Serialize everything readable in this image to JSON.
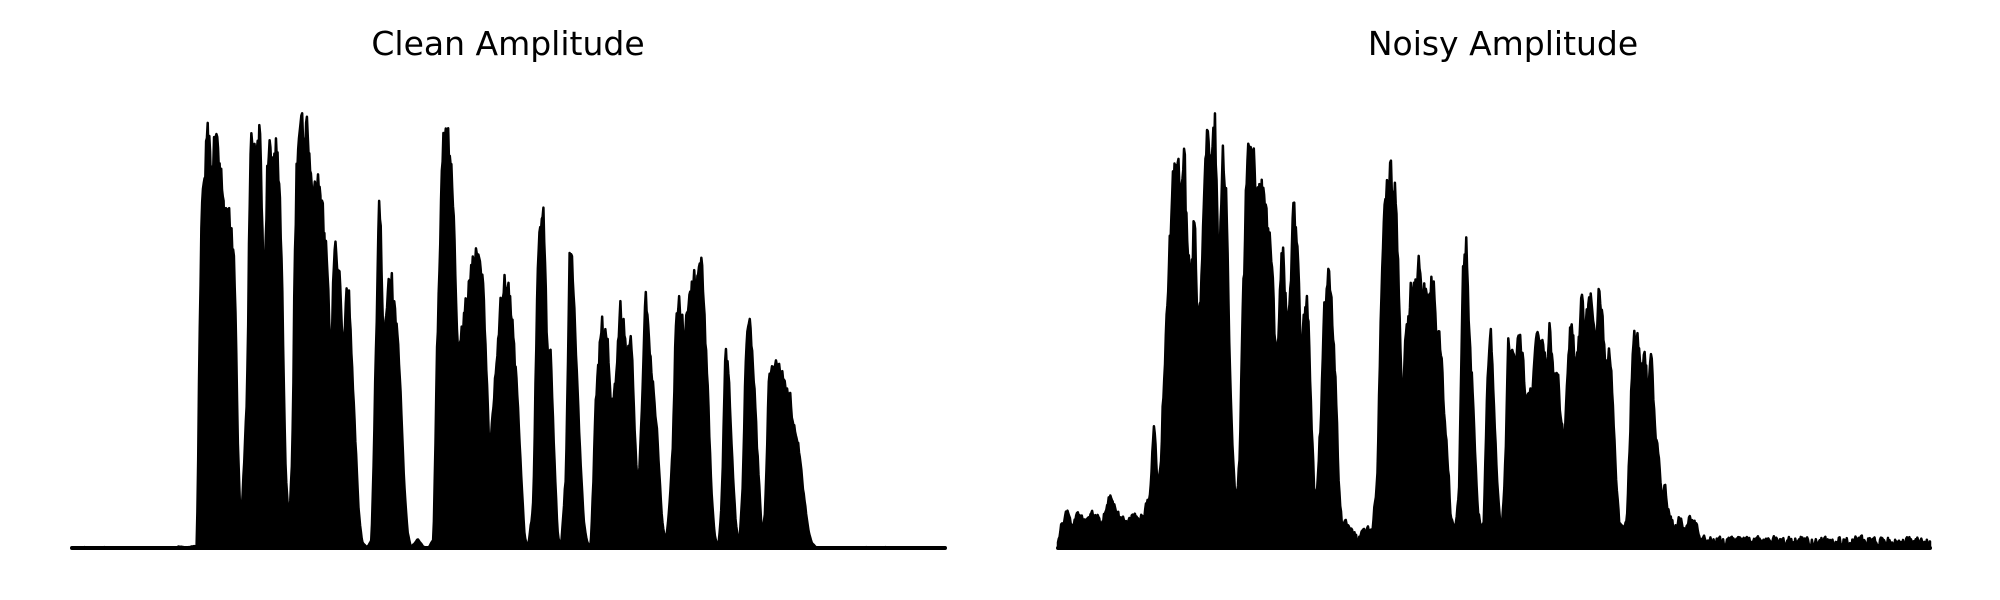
{
  "colors": {
    "background": "#ffffff",
    "waveform": "#000000"
  },
  "chart_data": [
    {
      "type": "area",
      "title": "Clean Amplitude",
      "xlabel": "",
      "ylabel": "",
      "axes_visible": false,
      "grid": false,
      "ylim": [
        0,
        1
      ],
      "xlim": [
        0,
        1
      ],
      "baseline_noise": 0.002,
      "envelope": [
        [
          0.0,
          0.0
        ],
        [
          0.118,
          0.0
        ],
        [
          0.122,
          0.003
        ],
        [
          0.13,
          0.0
        ],
        [
          0.143,
          0.004
        ],
        [
          0.146,
          0.55
        ],
        [
          0.15,
          0.92
        ],
        [
          0.155,
          0.95
        ],
        [
          0.16,
          0.9
        ],
        [
          0.165,
          0.94
        ],
        [
          0.17,
          0.88
        ],
        [
          0.175,
          0.75
        ],
        [
          0.18,
          0.82
        ],
        [
          0.186,
          0.65
        ],
        [
          0.19,
          0.2
        ],
        [
          0.193,
          0.04
        ],
        [
          0.197,
          0.22
        ],
        [
          0.2,
          0.36
        ],
        [
          0.204,
          0.94
        ],
        [
          0.21,
          0.92
        ],
        [
          0.215,
          0.98
        ],
        [
          0.22,
          0.55
        ],
        [
          0.224,
          0.93
        ],
        [
          0.228,
          0.9
        ],
        [
          0.232,
          0.94
        ],
        [
          0.236,
          0.88
        ],
        [
          0.24,
          0.6
        ],
        [
          0.244,
          0.18
        ],
        [
          0.248,
          0.05
        ],
        [
          0.252,
          0.22
        ],
        [
          0.256,
          0.85
        ],
        [
          0.262,
          0.98
        ],
        [
          0.268,
          0.95
        ],
        [
          0.274,
          0.88
        ],
        [
          0.28,
          0.85
        ],
        [
          0.286,
          0.8
        ],
        [
          0.292,
          0.65
        ],
        [
          0.296,
          0.4
        ],
        [
          0.3,
          0.73
        ],
        [
          0.305,
          0.65
        ],
        [
          0.31,
          0.45
        ],
        [
          0.314,
          0.6
        ],
        [
          0.318,
          0.55
        ],
        [
          0.323,
          0.3
        ],
        [
          0.328,
          0.08
        ],
        [
          0.332,
          0.01
        ],
        [
          0.338,
          0.0
        ],
        [
          0.343,
          0.02
        ],
        [
          0.347,
          0.4
        ],
        [
          0.352,
          0.84
        ],
        [
          0.356,
          0.45
        ],
        [
          0.36,
          0.55
        ],
        [
          0.365,
          0.62
        ],
        [
          0.37,
          0.55
        ],
        [
          0.375,
          0.42
        ],
        [
          0.38,
          0.15
        ],
        [
          0.384,
          0.03
        ],
        [
          0.388,
          0.0
        ],
        [
          0.396,
          0.02
        ],
        [
          0.402,
          0.0
        ],
        [
          0.408,
          0.0
        ],
        [
          0.414,
          0.02
        ],
        [
          0.418,
          0.5
        ],
        [
          0.424,
          0.9
        ],
        [
          0.428,
          0.96
        ],
        [
          0.432,
          0.92
        ],
        [
          0.437,
          0.8
        ],
        [
          0.441,
          0.45
        ],
        [
          0.446,
          0.5
        ],
        [
          0.45,
          0.55
        ],
        [
          0.455,
          0.62
        ],
        [
          0.46,
          0.7
        ],
        [
          0.466,
          0.68
        ],
        [
          0.472,
          0.55
        ],
        [
          0.478,
          0.2
        ],
        [
          0.484,
          0.4
        ],
        [
          0.49,
          0.55
        ],
        [
          0.496,
          0.62
        ],
        [
          0.502,
          0.56
        ],
        [
          0.508,
          0.4
        ],
        [
          0.514,
          0.18
        ],
        [
          0.518,
          0.02
        ],
        [
          0.522,
          0.0
        ],
        [
          0.528,
          0.1
        ],
        [
          0.534,
          0.78
        ],
        [
          0.54,
          0.75
        ],
        [
          0.544,
          0.45
        ],
        [
          0.548,
          0.48
        ],
        [
          0.552,
          0.2
        ],
        [
          0.556,
          0.02
        ],
        [
          0.56,
          0.0
        ],
        [
          0.566,
          0.2
        ],
        [
          0.57,
          0.76
        ],
        [
          0.574,
          0.58
        ],
        [
          0.578,
          0.4
        ],
        [
          0.582,
          0.2
        ],
        [
          0.586,
          0.05
        ],
        [
          0.59,
          0.01
        ],
        [
          0.594,
          0.0
        ],
        [
          0.6,
          0.35
        ],
        [
          0.606,
          0.52
        ],
        [
          0.612,
          0.5
        ],
        [
          0.618,
          0.3
        ],
        [
          0.624,
          0.45
        ],
        [
          0.628,
          0.56
        ],
        [
          0.632,
          0.5
        ],
        [
          0.636,
          0.45
        ],
        [
          0.64,
          0.48
        ],
        [
          0.644,
          0.28
        ],
        [
          0.648,
          0.12
        ],
        [
          0.652,
          0.3
        ],
        [
          0.656,
          0.58
        ],
        [
          0.66,
          0.5
        ],
        [
          0.664,
          0.4
        ],
        [
          0.668,
          0.32
        ],
        [
          0.672,
          0.18
        ],
        [
          0.676,
          0.05
        ],
        [
          0.68,
          0.01
        ],
        [
          0.684,
          0.1
        ],
        [
          0.688,
          0.25
        ],
        [
          0.692,
          0.6
        ],
        [
          0.696,
          0.55
        ],
        [
          0.7,
          0.5
        ],
        [
          0.705,
          0.56
        ],
        [
          0.71,
          0.62
        ],
        [
          0.715,
          0.6
        ],
        [
          0.72,
          0.68
        ],
        [
          0.724,
          0.54
        ],
        [
          0.728,
          0.36
        ],
        [
          0.732,
          0.12
        ],
        [
          0.736,
          0.02
        ],
        [
          0.74,
          0.0
        ],
        [
          0.744,
          0.1
        ],
        [
          0.748,
          0.5
        ],
        [
          0.752,
          0.4
        ],
        [
          0.756,
          0.2
        ],
        [
          0.76,
          0.05
        ],
        [
          0.764,
          0.0
        ],
        [
          0.768,
          0.15
        ],
        [
          0.772,
          0.5
        ],
        [
          0.776,
          0.52
        ],
        [
          0.78,
          0.42
        ],
        [
          0.785,
          0.2
        ],
        [
          0.79,
          0.02
        ],
        [
          0.794,
          0.1
        ],
        [
          0.798,
          0.42
        ],
        [
          0.803,
          0.44
        ],
        [
          0.808,
          0.42
        ],
        [
          0.814,
          0.4
        ],
        [
          0.82,
          0.36
        ],
        [
          0.826,
          0.3
        ],
        [
          0.832,
          0.22
        ],
        [
          0.838,
          0.12
        ],
        [
          0.843,
          0.04
        ],
        [
          0.847,
          0.01
        ],
        [
          0.852,
          0.0
        ],
        [
          0.9,
          0.0
        ],
        [
          1.0,
          0.0
        ]
      ]
    },
    {
      "type": "area",
      "title": "Noisy Amplitude",
      "xlabel": "",
      "ylabel": "",
      "axes_visible": false,
      "grid": false,
      "ylim": [
        0,
        1
      ],
      "xlim": [
        0,
        1
      ],
      "baseline_noise": 0.03,
      "envelope": [
        [
          0.0,
          0.02
        ],
        [
          0.012,
          0.07
        ],
        [
          0.016,
          0.02
        ],
        [
          0.02,
          0.06
        ],
        [
          0.03,
          0.05
        ],
        [
          0.04,
          0.06
        ],
        [
          0.05,
          0.04
        ],
        [
          0.058,
          0.1
        ],
        [
          0.064,
          0.08
        ],
        [
          0.07,
          0.06
        ],
        [
          0.078,
          0.04
        ],
        [
          0.086,
          0.06
        ],
        [
          0.094,
          0.05
        ],
        [
          0.1,
          0.07
        ],
        [
          0.106,
          0.12
        ],
        [
          0.11,
          0.3
        ],
        [
          0.114,
          0.1
        ],
        [
          0.118,
          0.2
        ],
        [
          0.124,
          0.55
        ],
        [
          0.128,
          0.7
        ],
        [
          0.132,
          0.88
        ],
        [
          0.136,
          0.92
        ],
        [
          0.14,
          0.78
        ],
        [
          0.144,
          0.92
        ],
        [
          0.148,
          0.7
        ],
        [
          0.152,
          0.6
        ],
        [
          0.156,
          0.78
        ],
        [
          0.16,
          0.45
        ],
        [
          0.164,
          0.6
        ],
        [
          0.168,
          0.88
        ],
        [
          0.172,
          0.98
        ],
        [
          0.176,
          0.85
        ],
        [
          0.18,
          0.98
        ],
        [
          0.184,
          0.6
        ],
        [
          0.188,
          0.9
        ],
        [
          0.192,
          0.85
        ],
        [
          0.196,
          0.45
        ],
        [
          0.2,
          0.2
        ],
        [
          0.204,
          0.08
        ],
        [
          0.208,
          0.2
        ],
        [
          0.212,
          0.6
        ],
        [
          0.216,
          0.86
        ],
        [
          0.22,
          0.88
        ],
        [
          0.224,
          0.85
        ],
        [
          0.23,
          0.82
        ],
        [
          0.236,
          0.78
        ],
        [
          0.242,
          0.74
        ],
        [
          0.246,
          0.6
        ],
        [
          0.25,
          0.4
        ],
        [
          0.254,
          0.6
        ],
        [
          0.258,
          0.72
        ],
        [
          0.262,
          0.48
        ],
        [
          0.266,
          0.6
        ],
        [
          0.27,
          0.78
        ],
        [
          0.274,
          0.7
        ],
        [
          0.278,
          0.4
        ],
        [
          0.282,
          0.56
        ],
        [
          0.286,
          0.55
        ],
        [
          0.29,
          0.3
        ],
        [
          0.294,
          0.08
        ],
        [
          0.298,
          0.15
        ],
        [
          0.302,
          0.35
        ],
        [
          0.306,
          0.58
        ],
        [
          0.31,
          0.6
        ],
        [
          0.314,
          0.52
        ],
        [
          0.318,
          0.35
        ],
        [
          0.322,
          0.1
        ],
        [
          0.326,
          0.03
        ],
        [
          0.33,
          0.04
        ],
        [
          0.336,
          0.02
        ],
        [
          0.344,
          0.0
        ],
        [
          0.352,
          0.03
        ],
        [
          0.36,
          0.02
        ],
        [
          0.366,
          0.15
        ],
        [
          0.37,
          0.55
        ],
        [
          0.374,
          0.86
        ],
        [
          0.378,
          0.8
        ],
        [
          0.382,
          0.88
        ],
        [
          0.386,
          0.8
        ],
        [
          0.39,
          0.6
        ],
        [
          0.394,
          0.3
        ],
        [
          0.398,
          0.45
        ],
        [
          0.402,
          0.55
        ],
        [
          0.406,
          0.58
        ],
        [
          0.41,
          0.6
        ],
        [
          0.414,
          0.62
        ],
        [
          0.418,
          0.56
        ],
        [
          0.422,
          0.55
        ],
        [
          0.426,
          0.55
        ],
        [
          0.43,
          0.58
        ],
        [
          0.434,
          0.5
        ],
        [
          0.44,
          0.38
        ],
        [
          0.446,
          0.2
        ],
        [
          0.45,
          0.05
        ],
        [
          0.456,
          0.03
        ],
        [
          0.46,
          0.15
        ],
        [
          0.464,
          0.68
        ],
        [
          0.468,
          0.7
        ],
        [
          0.472,
          0.45
        ],
        [
          0.476,
          0.3
        ],
        [
          0.48,
          0.1
        ],
        [
          0.484,
          0.02
        ],
        [
          0.488,
          0.05
        ],
        [
          0.492,
          0.4
        ],
        [
          0.496,
          0.5
        ],
        [
          0.5,
          0.3
        ],
        [
          0.504,
          0.1
        ],
        [
          0.508,
          0.02
        ],
        [
          0.512,
          0.15
        ],
        [
          0.516,
          0.48
        ],
        [
          0.52,
          0.45
        ],
        [
          0.524,
          0.4
        ],
        [
          0.528,
          0.5
        ],
        [
          0.532,
          0.44
        ],
        [
          0.536,
          0.3
        ],
        [
          0.54,
          0.38
        ],
        [
          0.544,
          0.34
        ],
        [
          0.548,
          0.5
        ],
        [
          0.552,
          0.46
        ],
        [
          0.556,
          0.48
        ],
        [
          0.56,
          0.4
        ],
        [
          0.564,
          0.5
        ],
        [
          0.568,
          0.35
        ],
        [
          0.572,
          0.4
        ],
        [
          0.576,
          0.3
        ],
        [
          0.58,
          0.2
        ],
        [
          0.584,
          0.4
        ],
        [
          0.588,
          0.52
        ],
        [
          0.592,
          0.4
        ],
        [
          0.596,
          0.45
        ],
        [
          0.6,
          0.56
        ],
        [
          0.604,
          0.48
        ],
        [
          0.608,
          0.55
        ],
        [
          0.612,
          0.56
        ],
        [
          0.616,
          0.45
        ],
        [
          0.62,
          0.58
        ],
        [
          0.624,
          0.5
        ],
        [
          0.628,
          0.35
        ],
        [
          0.632,
          0.44
        ],
        [
          0.636,
          0.3
        ],
        [
          0.64,
          0.12
        ],
        [
          0.644,
          0.03
        ],
        [
          0.648,
          0.02
        ],
        [
          0.652,
          0.04
        ],
        [
          0.656,
          0.3
        ],
        [
          0.66,
          0.48
        ],
        [
          0.664,
          0.5
        ],
        [
          0.668,
          0.36
        ],
        [
          0.672,
          0.46
        ],
        [
          0.676,
          0.3
        ],
        [
          0.68,
          0.45
        ],
        [
          0.684,
          0.28
        ],
        [
          0.688,
          0.2
        ],
        [
          0.692,
          0.1
        ],
        [
          0.696,
          0.12
        ],
        [
          0.7,
          0.06
        ],
        [
          0.706,
          0.03
        ],
        [
          0.712,
          0.05
        ],
        [
          0.718,
          0.02
        ],
        [
          0.724,
          0.06
        ],
        [
          0.728,
          0.04
        ],
        [
          0.732,
          0.03
        ],
        [
          0.736,
          0.0
        ],
        [
          1.0,
          0.0
        ]
      ]
    }
  ]
}
